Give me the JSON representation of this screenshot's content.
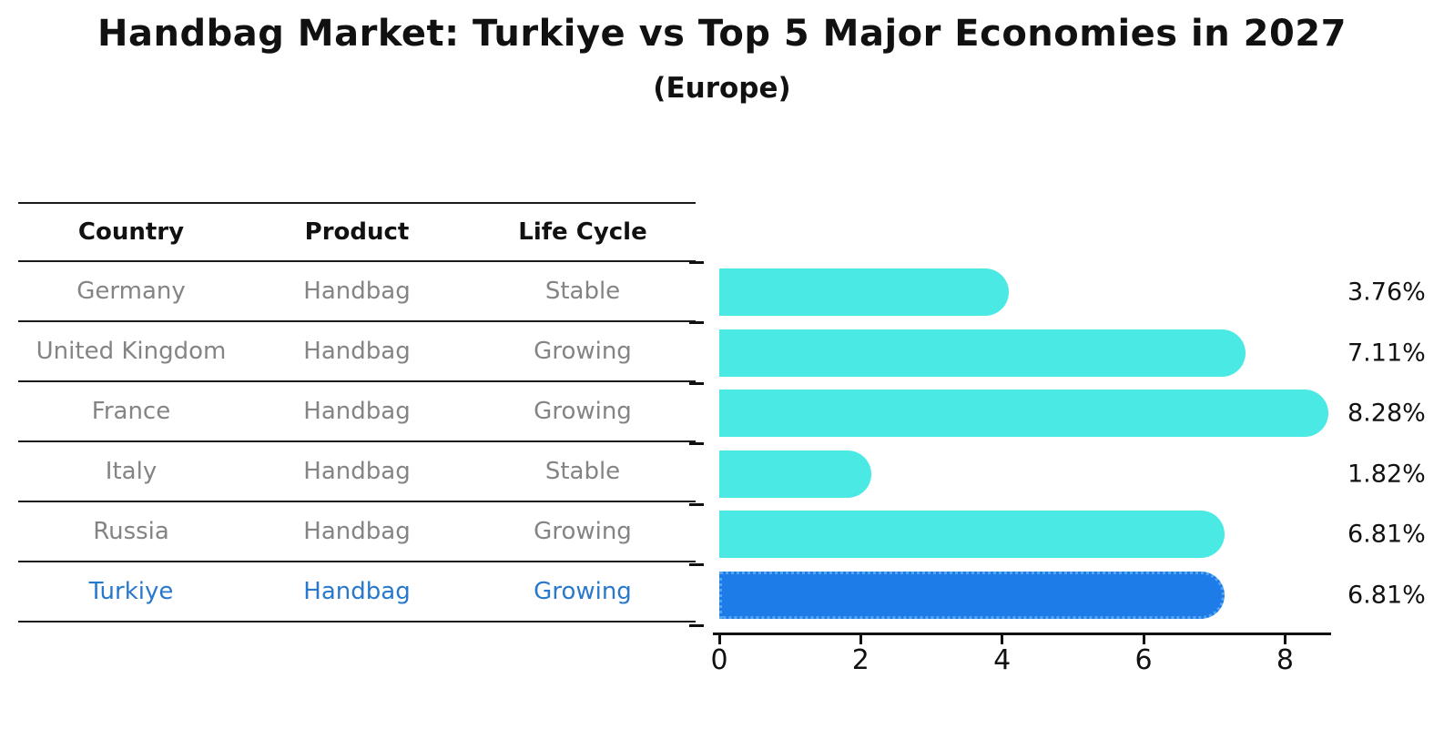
{
  "title": "Handbag Market: Turkiye vs Top 5 Major Economies in 2027",
  "subtitle": "(Europe)",
  "colors": {
    "bar_default": "#4BE9E4",
    "bar_highlight": "#1E7CE8",
    "bar_highlight_border": "#55A7F2",
    "highlight_text": "#2878CC",
    "row_text": "#848484",
    "header_text": "#111111",
    "axis": "#111111"
  },
  "table": {
    "columns": [
      "Country",
      "Product",
      "Life Cycle"
    ]
  },
  "chart_data": {
    "type": "bar",
    "orientation": "horizontal",
    "title": "Handbag Market: Turkiye vs Top 5 Major Economies in 2027",
    "subtitle": "(Europe)",
    "xlabel": "",
    "ylabel": "",
    "xlim": [
      0,
      8.6
    ],
    "xticks": [
      0,
      2,
      4,
      6,
      8
    ],
    "grid": false,
    "legend": false,
    "highlight_category": "Turkiye",
    "categories": [
      "Germany",
      "United Kingdom",
      "France",
      "Italy",
      "Russia",
      "Turkiye"
    ],
    "values": [
      3.76,
      7.11,
      8.28,
      1.82,
      6.81,
      6.81
    ],
    "bar_labels": [
      "3.76%",
      "7.11%",
      "8.28%",
      "1.82%",
      "6.81%",
      "6.81%"
    ],
    "rows": [
      {
        "country": "Germany",
        "product": "Handbag",
        "life_cycle": "Stable",
        "value": 3.76,
        "label": "3.76%",
        "highlight": false
      },
      {
        "country": "United Kingdom",
        "product": "Handbag",
        "life_cycle": "Growing",
        "value": 7.11,
        "label": "7.11%",
        "highlight": false
      },
      {
        "country": "France",
        "product": "Handbag",
        "life_cycle": "Growing",
        "value": 8.28,
        "label": "8.28%",
        "highlight": false
      },
      {
        "country": "Italy",
        "product": "Handbag",
        "life_cycle": "Stable",
        "value": 1.82,
        "label": "1.82%",
        "highlight": false
      },
      {
        "country": "Russia",
        "product": "Handbag",
        "life_cycle": "Growing",
        "value": 6.81,
        "label": "6.81%",
        "highlight": false
      },
      {
        "country": "Turkiye",
        "product": "Handbag",
        "life_cycle": "Growing",
        "value": 6.81,
        "label": "6.81%",
        "highlight": true
      }
    ]
  }
}
